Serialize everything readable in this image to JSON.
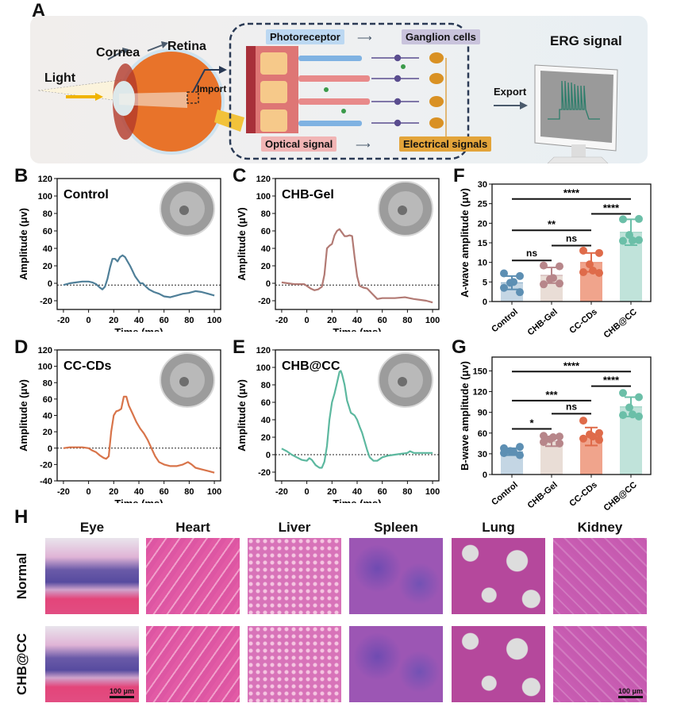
{
  "panels": {
    "A": "A",
    "B": "B",
    "C": "C",
    "D": "D",
    "E": "E",
    "F": "F",
    "G": "G",
    "H": "H"
  },
  "schematic": {
    "light": "Light",
    "cornea": "Cornea",
    "retina": "Retina",
    "import": "Import",
    "photoreceptor": "Photoreceptor",
    "ganglion": "Ganglion cells",
    "optical": "Optical signal",
    "electrical": "Electrical signals",
    "export": "Export",
    "erg": "ERG signal",
    "colors": {
      "photoreceptor_chip": "#bcd8f2",
      "ganglion_chip": "#c9c3dc",
      "optical_chip": "#f1b5b5",
      "electrical_chip": "#e3a43a",
      "signal_trace": "#2e7d6b"
    }
  },
  "chart_data": [
    {
      "id": "B",
      "type": "line",
      "title": "Control",
      "xlabel": "Time (ms)",
      "ylabel": "Amplitude (μv)",
      "xlim": [
        -25,
        105
      ],
      "ylim": [
        -30,
        120
      ],
      "xticks": [
        -20,
        0,
        20,
        40,
        60,
        80,
        100
      ],
      "yticks": [
        -20,
        0,
        20,
        40,
        60,
        80,
        100,
        120
      ],
      "baseline": -2,
      "color": "#4f7f98",
      "x": [
        -20,
        -15,
        -10,
        -5,
        0,
        3,
        6,
        9,
        11,
        13,
        15,
        17,
        19,
        21,
        23,
        25,
        27,
        29,
        31,
        33,
        35,
        37,
        39,
        41,
        43,
        45,
        48,
        52,
        56,
        60,
        65,
        70,
        75,
        80,
        85,
        90,
        95,
        100
      ],
      "y": [
        -2,
        0,
        1,
        2,
        2,
        1,
        -1,
        -5,
        -7,
        -4,
        5,
        18,
        28,
        28,
        25,
        30,
        32,
        30,
        25,
        20,
        14,
        8,
        4,
        0,
        0,
        -3,
        -7,
        -10,
        -12,
        -15,
        -16,
        -14,
        -12,
        -11,
        -9,
        -10,
        -12,
        -14
      ]
    },
    {
      "id": "C",
      "type": "line",
      "title": "CHB-Gel",
      "xlabel": "Time (ms)",
      "ylabel": "Amplitude (μV)",
      "xlim": [
        -25,
        105
      ],
      "ylim": [
        -30,
        120
      ],
      "xticks": [
        -20,
        0,
        20,
        40,
        60,
        80,
        100
      ],
      "yticks": [
        -20,
        0,
        20,
        40,
        60,
        80,
        100,
        120
      ],
      "baseline": -2,
      "color": "#b27a74",
      "x": [
        -20,
        -15,
        -10,
        -5,
        -2,
        0,
        3,
        6,
        9,
        12,
        14,
        16,
        18,
        20,
        22,
        24,
        26,
        28,
        30,
        32,
        34,
        36,
        38,
        40,
        42,
        45,
        48,
        52,
        56,
        60,
        70,
        78,
        85,
        90,
        95,
        100
      ],
      "y": [
        1,
        0,
        -1,
        -1,
        -1,
        -3,
        -6,
        -8,
        -7,
        -4,
        10,
        40,
        43,
        45,
        55,
        60,
        62,
        58,
        54,
        54,
        55,
        54,
        30,
        8,
        -3,
        -5,
        -6,
        -12,
        -18,
        -17,
        -17,
        -16,
        -18,
        -19,
        -20,
        -22
      ]
    },
    {
      "id": "D",
      "type": "line",
      "title": "CC-CDs",
      "xlabel": "Time (ms)",
      "ylabel": "Amplitude (μv)",
      "xlim": [
        -25,
        105
      ],
      "ylim": [
        -40,
        120
      ],
      "xticks": [
        -20,
        0,
        20,
        40,
        60,
        80,
        100
      ],
      "yticks": [
        -40,
        -20,
        0,
        20,
        40,
        60,
        80,
        100,
        120
      ],
      "baseline": 0,
      "color": "#d8744a",
      "x": [
        -20,
        -15,
        -10,
        -5,
        0,
        3,
        6,
        9,
        12,
        14,
        16,
        18,
        20,
        22,
        24,
        26,
        28,
        30,
        32,
        35,
        38,
        41,
        44,
        47,
        50,
        53,
        56,
        60,
        65,
        70,
        75,
        79,
        82,
        85,
        90,
        95,
        100
      ],
      "y": [
        0,
        1,
        1,
        1,
        0,
        -3,
        -5,
        -9,
        -12,
        -13,
        -10,
        20,
        40,
        45,
        46,
        48,
        63,
        63,
        52,
        42,
        32,
        24,
        18,
        10,
        0,
        -10,
        -17,
        -20,
        -22,
        -22,
        -20,
        -17,
        -20,
        -24,
        -26,
        -28,
        -30
      ]
    },
    {
      "id": "E",
      "type": "line",
      "title": "CHB@CC",
      "xlabel": "Time (ms)",
      "ylabel": "Amplitude (μv)",
      "xlim": [
        -25,
        105
      ],
      "ylim": [
        -30,
        120
      ],
      "xticks": [
        -20,
        0,
        20,
        40,
        60,
        80,
        100
      ],
      "yticks": [
        -20,
        0,
        20,
        40,
        60,
        80,
        100,
        120
      ],
      "baseline": 0,
      "color": "#5cb89f",
      "x": [
        -20,
        -16,
        -12,
        -8,
        -4,
        0,
        2,
        4,
        7,
        10,
        12,
        14,
        16,
        18,
        20,
        22,
        24,
        26,
        27,
        28,
        30,
        32,
        35,
        38,
        40,
        42,
        44,
        46,
        48,
        50,
        53,
        56,
        60,
        65,
        70,
        75,
        80,
        82,
        85,
        90,
        95,
        100
      ],
      "y": [
        7,
        4,
        0,
        -3,
        -6,
        -7,
        -4,
        -6,
        -12,
        -15,
        -15,
        -8,
        10,
        40,
        60,
        70,
        82,
        95,
        96,
        92,
        80,
        62,
        48,
        45,
        40,
        32,
        25,
        15,
        5,
        -3,
        -7,
        -7,
        -3,
        -1,
        0,
        1,
        2,
        4,
        2,
        2,
        2,
        2
      ]
    },
    {
      "id": "F",
      "type": "bar",
      "title": "",
      "xlabel": "",
      "ylabel": "A-wave amplitude (μv)",
      "ylim": [
        0,
        30
      ],
      "yticks": [
        0,
        5,
        10,
        15,
        20,
        25,
        30
      ],
      "categories": [
        "Control",
        "CHB-Gel",
        "CC-CDs",
        "CHB@CC"
      ],
      "values": [
        4.8,
        6.7,
        10.0,
        17.7
      ],
      "errors": [
        1.7,
        2.0,
        2.4,
        3.3
      ],
      "points": [
        [
          7.2,
          6.5,
          4.8,
          3.5,
          2.4,
          5.0
        ],
        [
          9.2,
          9.0,
          5.7,
          4.4,
          4.6,
          6.0
        ],
        [
          13.0,
          12.4,
          9.5,
          7.5,
          7.3,
          7.9
        ],
        [
          21.0,
          21.1,
          17.0,
          15.5,
          15.7,
          15.6
        ]
      ],
      "colors": [
        "#5d8fb3",
        "#b7868a",
        "#df6b4a",
        "#6bbfa8"
      ],
      "bar_fills": [
        "#c4d6e4",
        "#e9ddd6",
        "#f0a48c",
        "#c0e3da"
      ],
      "significance": [
        {
          "from": 0,
          "to": 3,
          "label": "****",
          "level": 26.2
        },
        {
          "from": 2,
          "to": 3,
          "label": "****",
          "level": 22.4
        },
        {
          "from": 0,
          "to": 2,
          "label": "**",
          "level": 18.2
        },
        {
          "from": 1,
          "to": 2,
          "label": "ns",
          "level": 14.3
        },
        {
          "from": 0,
          "to": 1,
          "label": "ns",
          "level": 10.5
        }
      ]
    },
    {
      "id": "G",
      "type": "bar",
      "title": "",
      "xlabel": "",
      "ylabel": "B-wave amplitude (μv)",
      "ylim": [
        0,
        170
      ],
      "yticks": [
        0,
        30,
        60,
        90,
        120,
        150
      ],
      "categories": [
        "Control",
        "CHB-Gel",
        "CC-CDs",
        "CHB@CC"
      ],
      "values": [
        33,
        48,
        55,
        98
      ],
      "errors": [
        5,
        7,
        13,
        14
      ],
      "points": [
        [
          38,
          40,
          34,
          31,
          28,
          33
        ],
        [
          56,
          55,
          51,
          47,
          45,
          54
        ],
        [
          78,
          60,
          58,
          52,
          50,
          55
        ],
        [
          118,
          112,
          97,
          86,
          84,
          87
        ]
      ],
      "colors": [
        "#5d8fb3",
        "#b7868a",
        "#df6b4a",
        "#6bbfa8"
      ],
      "bar_fills": [
        "#c4d6e4",
        "#e9ddd6",
        "#f0a48c",
        "#c0e3da"
      ],
      "significance": [
        {
          "from": 0,
          "to": 3,
          "label": "****",
          "level": 149
        },
        {
          "from": 2,
          "to": 3,
          "label": "****",
          "level": 128
        },
        {
          "from": 0,
          "to": 2,
          "label": "***",
          "level": 107
        },
        {
          "from": 1,
          "to": 2,
          "label": "ns",
          "level": 88
        },
        {
          "from": 0,
          "to": 1,
          "label": "*",
          "level": 66
        }
      ]
    }
  ],
  "histology": {
    "columns": [
      "Eye",
      "Heart",
      "Liver",
      "Spleen",
      "Lung",
      "Kidney"
    ],
    "rows": [
      "Normal",
      "CHB@CC"
    ],
    "scale_bar": "100 μm"
  }
}
